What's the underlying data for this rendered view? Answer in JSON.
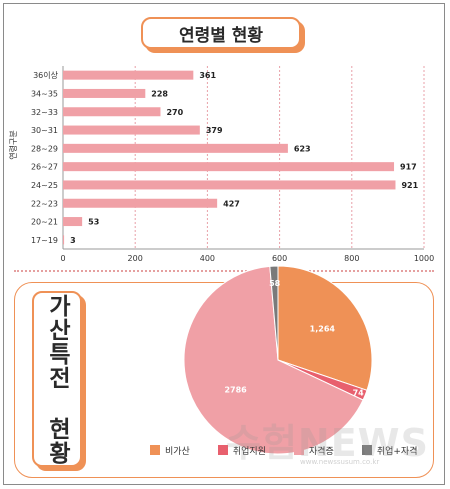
{
  "charts": {
    "age": {
      "title": "연령별 현황",
      "ylabel": "연령구분"
    },
    "bonus": {
      "title": "가산특전 현황"
    }
  },
  "watermark": {
    "brand": "수험NEWS",
    "url": "www.newssusum.co.kr"
  },
  "colors": {
    "bar": "#f0a0a6",
    "accent": "#ef9156"
  },
  "chart_data": [
    {
      "type": "bar",
      "orientation": "horizontal",
      "title": "연령별 현황",
      "ylabel": "연령구분",
      "xlabel": "",
      "categories": [
        "36이상",
        "34~35",
        "32~33",
        "30~31",
        "28~29",
        "26~27",
        "24~25",
        "22~23",
        "20~21",
        "17~19"
      ],
      "values": [
        361,
        228,
        270,
        379,
        623,
        917,
        921,
        427,
        53,
        3
      ],
      "xlim": [
        0,
        1000
      ],
      "xticks": [
        0,
        200,
        400,
        600,
        800,
        1000
      ],
      "grid": "vertical-dotted",
      "color": "#f0a0a6"
    },
    {
      "type": "pie",
      "title": "가산특전 현황",
      "slices": [
        {
          "name": "비가산",
          "value": 1264,
          "label": "1,264",
          "color": "#ef9156"
        },
        {
          "name": "취업지원",
          "value": 74,
          "label": "74",
          "color": "#e8606e"
        },
        {
          "name": "자격증",
          "value": 2786,
          "label": "2786",
          "color": "#f0a0a6"
        },
        {
          "name": "취업+자격",
          "value": 58,
          "label": "58",
          "color": "#7a7a7a"
        }
      ],
      "legend": "bottom"
    }
  ]
}
